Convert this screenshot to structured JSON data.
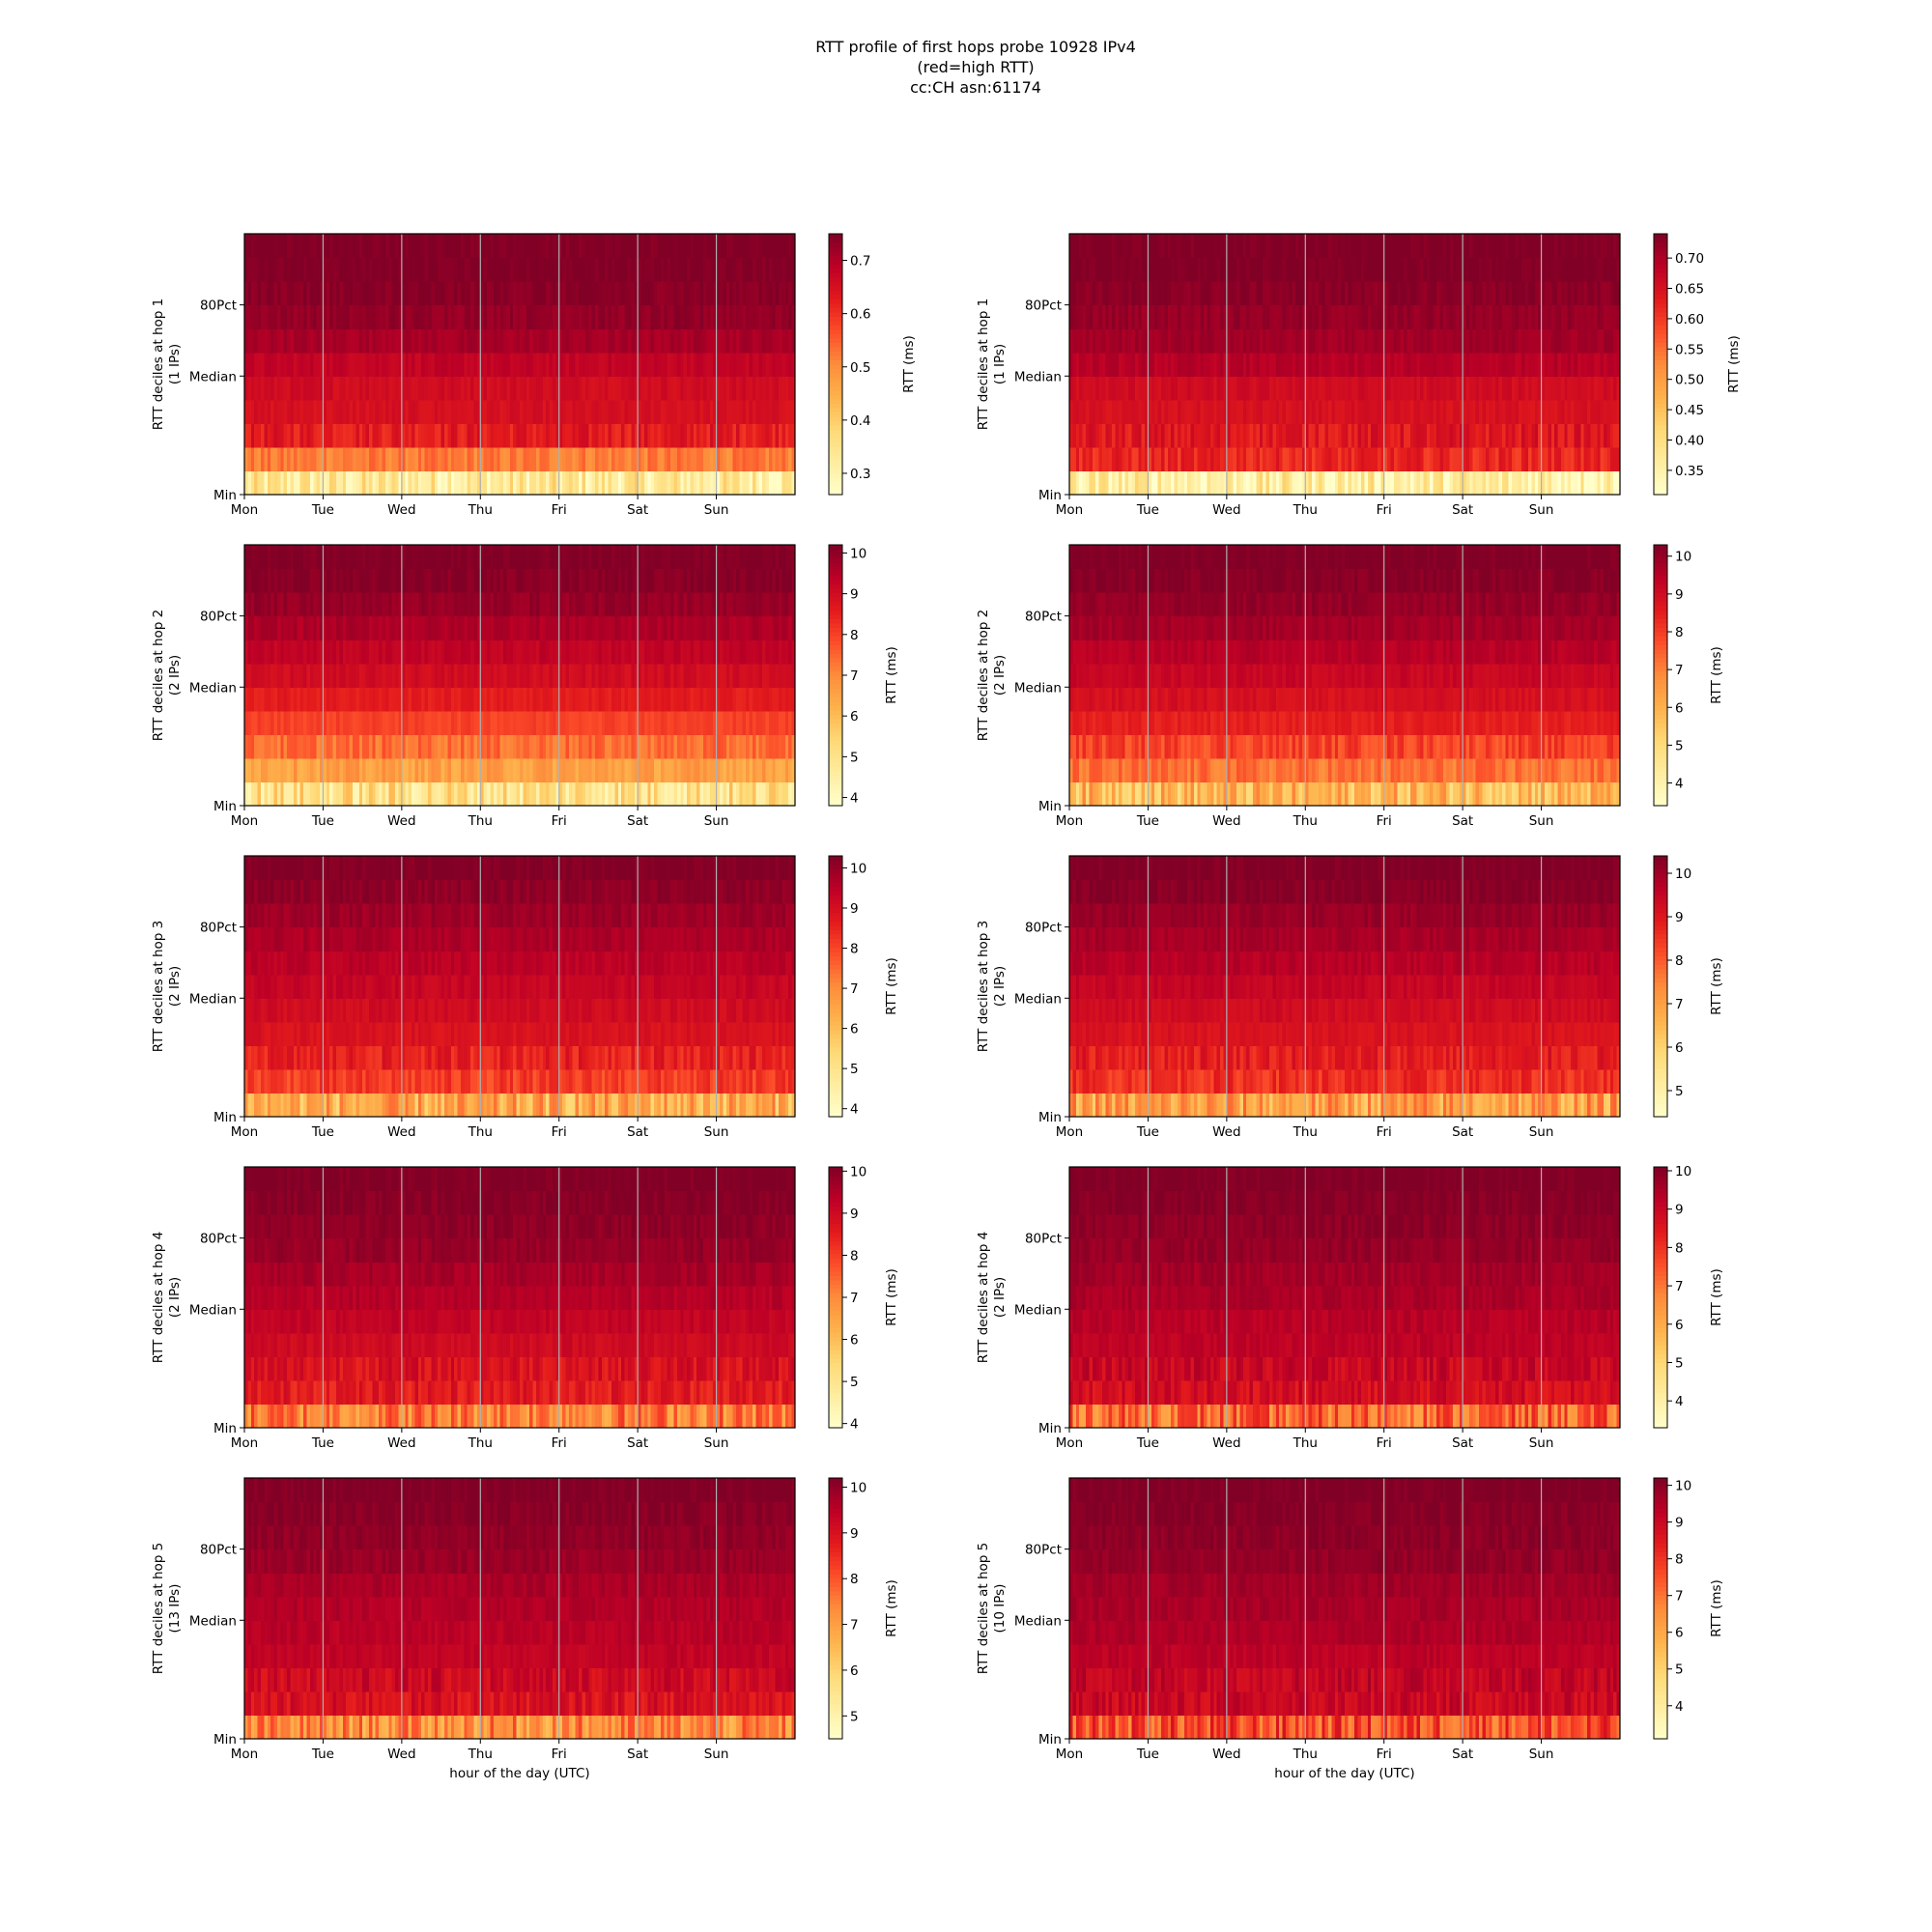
{
  "figure": {
    "title_lines": [
      "RTT profile of first hops probe 10928 IPv4",
      "(red=high RTT)",
      "cc:CH asn:61174"
    ],
    "xlabel": "hour of the day (UTC)",
    "colormap": [
      "#ffffcc",
      "#ffeda0",
      "#fed976",
      "#feb24c",
      "#fd8d3c",
      "#fc4e2a",
      "#e31a1c",
      "#bd0026",
      "#800026"
    ]
  },
  "chart_data": [
    {
      "type": "heatmap",
      "ylabel": "RTT deciles at hop 1",
      "ips": "(1 IPs)",
      "colorbar_label": "RTT (ms)",
      "vmin": 0.26,
      "vmax": 0.75,
      "cbar_ticks": [
        0.3,
        0.4,
        0.5,
        0.6,
        0.7
      ],
      "cbar_tick_labels": [
        "0.3",
        "0.4",
        "0.5",
        "0.6",
        "0.7"
      ],
      "x_ticks": [
        "Mon",
        "Tue",
        "Wed",
        "Thu",
        "Fri",
        "Sat",
        "Sun"
      ],
      "y_ticks": [
        "Min",
        "Median",
        "80Pct"
      ],
      "decile_values": [
        0.33,
        0.52,
        0.63,
        0.65,
        0.66,
        0.68,
        0.71,
        0.73,
        0.74,
        0.75,
        0.75
      ]
    },
    {
      "type": "heatmap",
      "ylabel": "RTT deciles at hop 1",
      "ips": "(1 IPs)",
      "colorbar_label": "RTT (ms)",
      "vmin": 0.31,
      "vmax": 0.74,
      "cbar_ticks": [
        0.35,
        0.4,
        0.45,
        0.5,
        0.55,
        0.6,
        0.65,
        0.7
      ],
      "cbar_tick_labels": [
        "0.35",
        "0.40",
        "0.45",
        "0.50",
        "0.55",
        "0.60",
        "0.65",
        "0.70"
      ],
      "x_ticks": [
        "Mon",
        "Tue",
        "Wed",
        "Thu",
        "Fri",
        "Sat",
        "Sun"
      ],
      "y_ticks": [
        "Min",
        "Median",
        "80Pct"
      ],
      "decile_values": [
        0.36,
        0.62,
        0.64,
        0.65,
        0.66,
        0.69,
        0.71,
        0.72,
        0.73,
        0.74,
        0.74
      ]
    },
    {
      "type": "heatmap",
      "ylabel": "RTT deciles at hop 2",
      "ips": "(2 IPs)",
      "colorbar_label": "RTT (ms)",
      "vmin": 3.8,
      "vmax": 10.2,
      "cbar_ticks": [
        4,
        5,
        6,
        7,
        8,
        9,
        10
      ],
      "cbar_tick_labels": [
        "4",
        "5",
        "6",
        "7",
        "8",
        "9",
        "10"
      ],
      "x_ticks": [
        "Mon",
        "Tue",
        "Wed",
        "Thu",
        "Fri",
        "Sat",
        "Sun"
      ],
      "y_ticks": [
        "Min",
        "Median",
        "80Pct"
      ],
      "decile_values": [
        5.1,
        6.6,
        7.4,
        8.0,
        8.6,
        9.0,
        9.3,
        9.6,
        9.9,
        10.1,
        10.2
      ]
    },
    {
      "type": "heatmap",
      "ylabel": "RTT deciles at hop 2",
      "ips": "(2 IPs)",
      "colorbar_label": "RTT (ms)",
      "vmin": 3.4,
      "vmax": 10.3,
      "cbar_ticks": [
        4,
        5,
        6,
        7,
        8,
        9,
        10
      ],
      "cbar_tick_labels": [
        "4",
        "5",
        "6",
        "7",
        "8",
        "9",
        "10"
      ],
      "x_ticks": [
        "Mon",
        "Tue",
        "Wed",
        "Thu",
        "Fri",
        "Sat",
        "Sun"
      ],
      "y_ticks": [
        "Min",
        "Median",
        "80Pct"
      ],
      "decile_values": [
        5.9,
        7.2,
        7.9,
        8.5,
        8.9,
        9.2,
        9.5,
        9.8,
        10.0,
        10.2,
        10.3
      ]
    },
    {
      "type": "heatmap",
      "ylabel": "RTT deciles at hop 3",
      "ips": "(2 IPs)",
      "colorbar_label": "RTT (ms)",
      "vmin": 3.8,
      "vmax": 10.3,
      "cbar_ticks": [
        4,
        5,
        6,
        7,
        8,
        9,
        10
      ],
      "cbar_tick_labels": [
        "4",
        "5",
        "6",
        "7",
        "8",
        "9",
        "10"
      ],
      "x_ticks": [
        "Mon",
        "Tue",
        "Wed",
        "Thu",
        "Fri",
        "Sat",
        "Sun"
      ],
      "y_ticks": [
        "Min",
        "Median",
        "80Pct"
      ],
      "decile_values": [
        6.4,
        8.1,
        8.6,
        8.9,
        9.1,
        9.3,
        9.5,
        9.7,
        9.9,
        10.1,
        10.3
      ]
    },
    {
      "type": "heatmap",
      "ylabel": "RTT deciles at hop 3",
      "ips": "(2 IPs)",
      "colorbar_label": "RTT (ms)",
      "vmin": 4.4,
      "vmax": 10.4,
      "cbar_ticks": [
        5,
        6,
        7,
        8,
        9,
        10
      ],
      "cbar_tick_labels": [
        "5",
        "6",
        "7",
        "8",
        "9",
        "10"
      ],
      "x_ticks": [
        "Mon",
        "Tue",
        "Wed",
        "Thu",
        "Fri",
        "Sat",
        "Sun"
      ],
      "y_ticks": [
        "Min",
        "Median",
        "80Pct"
      ],
      "decile_values": [
        7.0,
        8.6,
        8.9,
        9.1,
        9.3,
        9.5,
        9.7,
        9.9,
        10.1,
        10.3,
        10.4
      ]
    },
    {
      "type": "heatmap",
      "ylabel": "RTT deciles at hop 4",
      "ips": "(2 IPs)",
      "colorbar_label": "RTT (ms)",
      "vmin": 3.9,
      "vmax": 10.1,
      "cbar_ticks": [
        4,
        5,
        6,
        7,
        8,
        9,
        10
      ],
      "cbar_tick_labels": [
        "4",
        "5",
        "6",
        "7",
        "8",
        "9",
        "10"
      ],
      "x_ticks": [
        "Mon",
        "Tue",
        "Wed",
        "Thu",
        "Fri",
        "Sat",
        "Sun"
      ],
      "y_ticks": [
        "Min",
        "Median",
        "80Pct"
      ],
      "decile_values": [
        7.2,
        8.6,
        8.8,
        9.0,
        9.2,
        9.4,
        9.6,
        9.8,
        9.9,
        10.0,
        10.1
      ]
    },
    {
      "type": "heatmap",
      "ylabel": "RTT deciles at hop 4",
      "ips": "(2 IPs)",
      "colorbar_label": "RTT (ms)",
      "vmin": 3.3,
      "vmax": 10.1,
      "cbar_ticks": [
        4,
        5,
        6,
        7,
        8,
        9,
        10
      ],
      "cbar_tick_labels": [
        "4",
        "5",
        "6",
        "7",
        "8",
        "9",
        "10"
      ],
      "x_ticks": [
        "Mon",
        "Tue",
        "Wed",
        "Thu",
        "Fri",
        "Sat",
        "Sun"
      ],
      "y_ticks": [
        "Min",
        "Median",
        "80Pct"
      ],
      "decile_values": [
        7.2,
        8.8,
        9.0,
        9.2,
        9.3,
        9.5,
        9.6,
        9.8,
        9.9,
        10.0,
        10.1
      ]
    },
    {
      "type": "heatmap",
      "ylabel": "RTT deciles at hop 5",
      "ips": "(13 IPs)",
      "colorbar_label": "RTT (ms)",
      "vmin": 4.5,
      "vmax": 10.2,
      "cbar_ticks": [
        5,
        6,
        7,
        8,
        9,
        10
      ],
      "cbar_tick_labels": [
        "5",
        "6",
        "7",
        "8",
        "9",
        "10"
      ],
      "x_ticks": [
        "Mon",
        "Tue",
        "Wed",
        "Thu",
        "Fri",
        "Sat",
        "Sun"
      ],
      "y_ticks": [
        "Min",
        "Median",
        "80Pct"
      ],
      "decile_values": [
        7.3,
        9.0,
        9.2,
        9.4,
        9.5,
        9.6,
        9.7,
        9.9,
        10.0,
        10.1,
        10.2
      ]
    },
    {
      "type": "heatmap",
      "ylabel": "RTT deciles at hop 5",
      "ips": "(10 IPs)",
      "colorbar_label": "RTT (ms)",
      "vmin": 3.1,
      "vmax": 10.2,
      "cbar_ticks": [
        4,
        5,
        6,
        7,
        8,
        9,
        10
      ],
      "cbar_tick_labels": [
        "4",
        "5",
        "6",
        "7",
        "8",
        "9",
        "10"
      ],
      "x_ticks": [
        "Mon",
        "Tue",
        "Wed",
        "Thu",
        "Fri",
        "Sat",
        "Sun"
      ],
      "y_ticks": [
        "Min",
        "Median",
        "80Pct"
      ],
      "decile_values": [
        7.6,
        9.0,
        9.2,
        9.3,
        9.5,
        9.6,
        9.7,
        9.9,
        10.0,
        10.1,
        10.2
      ]
    }
  ]
}
